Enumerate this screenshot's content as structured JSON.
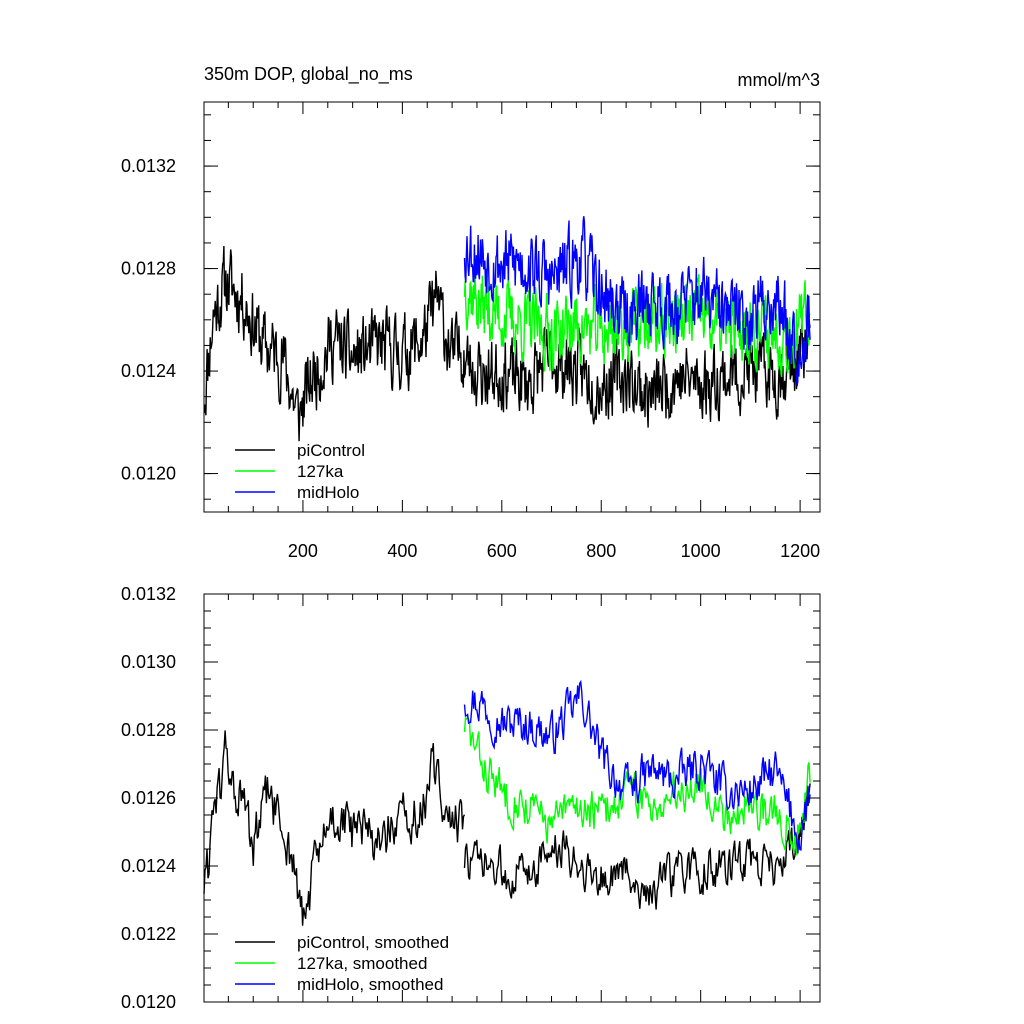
{
  "chart_data": [
    {
      "type": "line",
      "title": "350m DOP, global_no_ms",
      "units": "mmol/m^3",
      "xlabel": "",
      "ylabel": "",
      "xlim": [
        1,
        1240
      ],
      "ylim": [
        0.01185,
        0.01345
      ],
      "xticks": [
        200,
        400,
        600,
        800,
        1000,
        1200
      ],
      "xtick_labels": [
        "200",
        "400",
        "600",
        "800",
        "1000",
        "1200"
      ],
      "yticks": [
        0.012,
        0.0124,
        0.0128,
        0.0132
      ],
      "ytick_labels": [
        "0.0120",
        "0.0124",
        "0.0128",
        "0.0132"
      ],
      "legend_position": "bottom-left",
      "series": [
        {
          "name": "piControl",
          "color": "#000000",
          "x_start": 1,
          "x_end": 525,
          "points": 420,
          "mean": 0.01252,
          "amplitude": 0.00022,
          "seed": 11,
          "anchors": [
            [
              1,
              0.0123
            ],
            [
              20,
              0.01262
            ],
            [
              45,
              0.01275
            ],
            [
              80,
              0.01268
            ],
            [
              120,
              0.0125
            ],
            [
              160,
              0.01245
            ],
            [
              190,
              0.01222
            ],
            [
              220,
              0.01238
            ],
            [
              260,
              0.01252
            ],
            [
              300,
              0.01245
            ],
            [
              350,
              0.0125
            ],
            [
              400,
              0.01247
            ],
            [
              440,
              0.01252
            ],
            [
              470,
              0.01268
            ],
            [
              500,
              0.01245
            ],
            [
              525,
              0.0125
            ]
          ]
        },
        {
          "name": "piControl",
          "color": "#000000",
          "x_start": 525,
          "x_end": 1220,
          "points": 560,
          "mean": 0.01238,
          "amplitude": 0.00022,
          "seed": 23,
          "anchors": [
            [
              525,
              0.01245
            ],
            [
              560,
              0.01238
            ],
            [
              600,
              0.0124
            ],
            [
              650,
              0.01235
            ],
            [
              700,
              0.01245
            ],
            [
              750,
              0.0124
            ],
            [
              800,
              0.01235
            ],
            [
              850,
              0.01238
            ],
            [
              900,
              0.0123
            ],
            [
              950,
              0.01238
            ],
            [
              1000,
              0.01235
            ],
            [
              1050,
              0.01238
            ],
            [
              1100,
              0.0124
            ],
            [
              1150,
              0.01238
            ],
            [
              1200,
              0.01245
            ],
            [
              1220,
              0.0125
            ]
          ]
        },
        {
          "name": "127ka",
          "color": "#00ff00",
          "x_start": 525,
          "x_end": 1220,
          "points": 560,
          "mean": 0.0126,
          "amplitude": 0.00022,
          "seed": 37,
          "anchors": [
            [
              525,
              0.01275
            ],
            [
              560,
              0.01265
            ],
            [
              600,
              0.01262
            ],
            [
              650,
              0.01258
            ],
            [
              700,
              0.01255
            ],
            [
              750,
              0.01258
            ],
            [
              800,
              0.01255
            ],
            [
              850,
              0.01258
            ],
            [
              900,
              0.01258
            ],
            [
              950,
              0.0126
            ],
            [
              1000,
              0.01262
            ],
            [
              1050,
              0.01255
            ],
            [
              1100,
              0.01258
            ],
            [
              1150,
              0.01255
            ],
            [
              1200,
              0.01255
            ],
            [
              1220,
              0.01265
            ]
          ]
        },
        {
          "name": "midHolo",
          "color": "#0000ff",
          "x_start": 525,
          "x_end": 1220,
          "points": 560,
          "mean": 0.0127,
          "amplitude": 0.00022,
          "seed": 53,
          "anchors": [
            [
              525,
              0.0129
            ],
            [
              560,
              0.01285
            ],
            [
              600,
              0.01282
            ],
            [
              650,
              0.01282
            ],
            [
              700,
              0.01275
            ],
            [
              760,
              0.01285
            ],
            [
              800,
              0.0127
            ],
            [
              850,
              0.01262
            ],
            [
              900,
              0.01268
            ],
            [
              950,
              0.01265
            ],
            [
              1000,
              0.0127
            ],
            [
              1050,
              0.01262
            ],
            [
              1100,
              0.01262
            ],
            [
              1150,
              0.01268
            ],
            [
              1200,
              0.0125
            ],
            [
              1220,
              0.01262
            ]
          ]
        }
      ],
      "legend": [
        {
          "label": "piControl",
          "color": "#000000"
        },
        {
          "label": "127ka",
          "color": "#00ff00"
        },
        {
          "label": "midHolo",
          "color": "#0000ff"
        }
      ]
    },
    {
      "type": "line",
      "title": "",
      "xlabel": "",
      "ylabel": "",
      "xlim": [
        1,
        1240
      ],
      "ylim": [
        0.012,
        0.0132
      ],
      "xticks": [
        200,
        400,
        600,
        800,
        1000,
        1200
      ],
      "xtick_labels": [],
      "yticks": [
        0.012,
        0.0122,
        0.0124,
        0.0126,
        0.0128,
        0.013,
        0.0132
      ],
      "ytick_labels": [
        "0.0120",
        "0.0122",
        "0.0124",
        "0.0126",
        "0.0128",
        "0.0130",
        "0.0132"
      ],
      "legend_position": "bottom-left",
      "series": [
        {
          "name": "piControl, smoothed",
          "color": "#000000",
          "x_start": 1,
          "x_end": 525,
          "points": 260,
          "mean": 0.01252,
          "amplitude": 0.00012,
          "seed": 61,
          "anchors": [
            [
              1,
              0.01235
            ],
            [
              10,
              0.0124
            ],
            [
              20,
              0.01262
            ],
            [
              30,
              0.01258
            ],
            [
              45,
              0.01275
            ],
            [
              60,
              0.01262
            ],
            [
              80,
              0.01258
            ],
            [
              100,
              0.01245
            ],
            [
              130,
              0.01262
            ],
            [
              160,
              0.0125
            ],
            [
              180,
              0.01242
            ],
            [
              200,
              0.01222
            ],
            [
              220,
              0.01238
            ],
            [
              260,
              0.01255
            ],
            [
              300,
              0.0125
            ],
            [
              350,
              0.01248
            ],
            [
              400,
              0.01252
            ],
            [
              440,
              0.01255
            ],
            [
              460,
              0.01268
            ],
            [
              480,
              0.01262
            ],
            [
              500,
              0.01252
            ],
            [
              525,
              0.01252
            ]
          ]
        },
        {
          "name": "piControl, smoothed",
          "color": "#000000",
          "x_start": 525,
          "x_end": 1220,
          "points": 340,
          "mean": 0.0124,
          "amplitude": 0.0001,
          "seed": 73,
          "anchors": [
            [
              525,
              0.01242
            ],
            [
              560,
              0.0124
            ],
            [
              600,
              0.01238
            ],
            [
              650,
              0.01238
            ],
            [
              700,
              0.01245
            ],
            [
              750,
              0.01242
            ],
            [
              800,
              0.01236
            ],
            [
              850,
              0.01238
            ],
            [
              900,
              0.01232
            ],
            [
              950,
              0.01238
            ],
            [
              1000,
              0.01238
            ],
            [
              1050,
              0.0124
            ],
            [
              1100,
              0.01242
            ],
            [
              1150,
              0.0124
            ],
            [
              1200,
              0.01248
            ],
            [
              1220,
              0.01265
            ]
          ]
        },
        {
          "name": "127ka, smoothed",
          "color": "#00ff00",
          "x_start": 525,
          "x_end": 1220,
          "points": 340,
          "mean": 0.0126,
          "amplitude": 0.0001,
          "seed": 83,
          "anchors": [
            [
              525,
              0.01282
            ],
            [
              560,
              0.0127
            ],
            [
              600,
              0.01262
            ],
            [
              650,
              0.01258
            ],
            [
              700,
              0.01252
            ],
            [
              750,
              0.01258
            ],
            [
              800,
              0.01255
            ],
            [
              850,
              0.01262
            ],
            [
              900,
              0.01258
            ],
            [
              950,
              0.01262
            ],
            [
              1000,
              0.01265
            ],
            [
              1050,
              0.01255
            ],
            [
              1100,
              0.01258
            ],
            [
              1150,
              0.01255
            ],
            [
              1200,
              0.0125
            ],
            [
              1220,
              0.01268
            ]
          ]
        },
        {
          "name": "midHolo, smoothed",
          "color": "#0000ff",
          "x_start": 525,
          "x_end": 1220,
          "points": 340,
          "mean": 0.01272,
          "amplitude": 0.0001,
          "seed": 97,
          "anchors": [
            [
              525,
              0.0129
            ],
            [
              560,
              0.01288
            ],
            [
              600,
              0.01282
            ],
            [
              650,
              0.01282
            ],
            [
              700,
              0.01278
            ],
            [
              760,
              0.0129
            ],
            [
              800,
              0.01272
            ],
            [
              850,
              0.01262
            ],
            [
              900,
              0.01268
            ],
            [
              950,
              0.01265
            ],
            [
              1000,
              0.0127
            ],
            [
              1050,
              0.01262
            ],
            [
              1100,
              0.01262
            ],
            [
              1150,
              0.01268
            ],
            [
              1200,
              0.01248
            ],
            [
              1220,
              0.01262
            ]
          ]
        }
      ],
      "legend": [
        {
          "label": "piControl, smoothed",
          "color": "#000000"
        },
        {
          "label": "127ka, smoothed",
          "color": "#00ff00"
        },
        {
          "label": "midHolo, smoothed",
          "color": "#0000ff"
        }
      ]
    }
  ]
}
